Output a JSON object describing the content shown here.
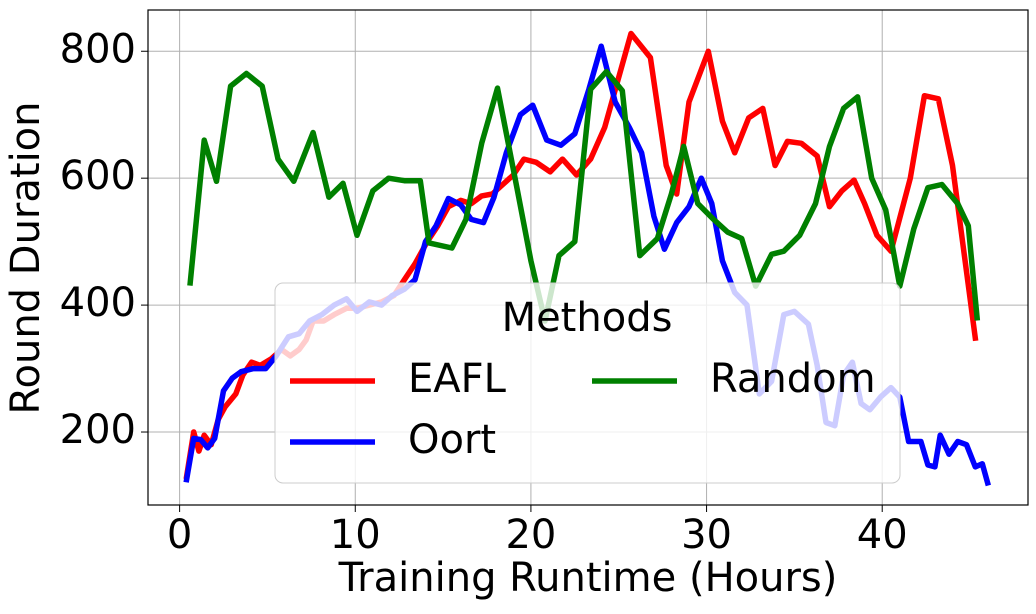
{
  "chart_data": {
    "type": "line",
    "xlabel": "Training Runtime (Hours)",
    "ylabel": "Round Duration",
    "xlim": [
      -1.8,
      48.3
    ],
    "ylim": [
      85,
      865
    ],
    "xticks": [
      0,
      10,
      20,
      30,
      40
    ],
    "yticks": [
      200,
      400,
      600,
      800
    ],
    "grid": true,
    "legend_title": "Methods",
    "legend": "lower center",
    "series": [
      {
        "name": "EAFL",
        "color": "#ff0000",
        "x": [
          0.4,
          0.8,
          1.1,
          1.4,
          1.8,
          2.2,
          2.6,
          3.2,
          3.6,
          4.1,
          4.6,
          5.2,
          5.8,
          6.3,
          6.8,
          7.2,
          7.6,
          8.2,
          8.8,
          9.5,
          10.1,
          10.8,
          11.5,
          12.2,
          12.8,
          13.4,
          14.1,
          14.7,
          15.3,
          16.0,
          16.6,
          17.2,
          17.8,
          18.4,
          19.0,
          19.6,
          20.3,
          21.1,
          21.8,
          22.6,
          23.4,
          24.2,
          25.7,
          26.8,
          27.7,
          28.3,
          29.0,
          30.1,
          30.9,
          31.6,
          32.4,
          33.2,
          33.9,
          34.6,
          35.4,
          36.3,
          37.0,
          37.7,
          38.4,
          39.0,
          39.7,
          40.5,
          41.6,
          42.4,
          43.2,
          44.0,
          45.3
        ],
        "values": [
          130,
          200,
          170,
          195,
          180,
          220,
          240,
          260,
          290,
          310,
          305,
          315,
          330,
          320,
          330,
          345,
          375,
          375,
          385,
          395,
          395,
          400,
          405,
          415,
          440,
          465,
          500,
          525,
          555,
          565,
          560,
          572,
          575,
          590,
          605,
          630,
          625,
          610,
          630,
          605,
          630,
          680,
          828,
          790,
          620,
          575,
          720,
          800,
          690,
          640,
          695,
          710,
          620,
          658,
          655,
          635,
          555,
          580,
          597,
          560,
          510,
          485,
          600,
          730,
          725,
          620,
          348
        ]
      },
      {
        "name": "Oort",
        "color": "#0000ff",
        "x": [
          0.4,
          0.8,
          1.2,
          1.6,
          2.0,
          2.5,
          3.0,
          3.5,
          4.2,
          4.9,
          5.5,
          6.2,
          6.8,
          7.4,
          8.1,
          8.8,
          9.5,
          10.1,
          10.8,
          11.5,
          12.1,
          12.8,
          13.4,
          14.0,
          14.6,
          15.3,
          16.0,
          16.6,
          17.3,
          17.9,
          18.6,
          19.4,
          20.1,
          20.9,
          21.7,
          22.5,
          23.3,
          24.0,
          24.8,
          25.6,
          26.3,
          27.0,
          27.6,
          28.3,
          29.0,
          29.7,
          30.3,
          30.9,
          31.6,
          32.3,
          33.0,
          33.7,
          34.4,
          35.0,
          35.8,
          36.3,
          36.8,
          37.3,
          37.8,
          38.3,
          38.8,
          39.3,
          39.9,
          40.5,
          41.0,
          41.5,
          42.2,
          42.6,
          43.0,
          43.3,
          43.8,
          44.3,
          44.8,
          45.3,
          45.7,
          46.0
        ],
        "values": [
          125,
          190,
          188,
          175,
          190,
          265,
          285,
          295,
          300,
          300,
          320,
          350,
          355,
          375,
          385,
          400,
          410,
          390,
          405,
          400,
          415,
          425,
          440,
          500,
          525,
          568,
          558,
          535,
          530,
          570,
          640,
          700,
          715,
          660,
          652,
          670,
          740,
          808,
          720,
          680,
          640,
          540,
          488,
          530,
          555,
          600,
          560,
          470,
          420,
          400,
          260,
          280,
          385,
          390,
          370,
          305,
          215,
          210,
          290,
          310,
          245,
          235,
          255,
          270,
          255,
          185,
          185,
          148,
          145,
          195,
          165,
          185,
          180,
          145,
          150,
          120
        ]
      },
      {
        "name": "Random",
        "color": "#008000",
        "x": [
          0.6,
          1.4,
          2.1,
          2.9,
          3.8,
          4.7,
          5.6,
          6.5,
          7.6,
          8.5,
          9.3,
          10.1,
          11.0,
          11.9,
          12.8,
          13.7,
          14.2,
          15.5,
          16.3,
          17.2,
          18.1,
          19.2,
          20.0,
          20.8,
          21.6,
          22.5,
          23.4,
          24.3,
          25.2,
          26.2,
          27.2,
          28.0,
          28.7,
          29.5,
          30.4,
          31.2,
          32.0,
          32.8,
          33.7,
          34.4,
          35.3,
          36.2,
          37.0,
          37.8,
          38.6,
          39.4,
          40.2,
          41.0,
          41.8,
          42.6,
          43.4,
          44.3,
          44.9,
          45.4
        ],
        "values": [
          435,
          660,
          595,
          745,
          765,
          745,
          630,
          595,
          672,
          570,
          592,
          510,
          580,
          600,
          596,
          596,
          498,
          490,
          535,
          655,
          742,
          585,
          470,
          375,
          478,
          500,
          740,
          768,
          738,
          478,
          505,
          575,
          650,
          560,
          535,
          515,
          505,
          430,
          480,
          485,
          510,
          560,
          650,
          710,
          728,
          600,
          550,
          430,
          520,
          585,
          590,
          560,
          525,
          380
        ]
      }
    ]
  }
}
